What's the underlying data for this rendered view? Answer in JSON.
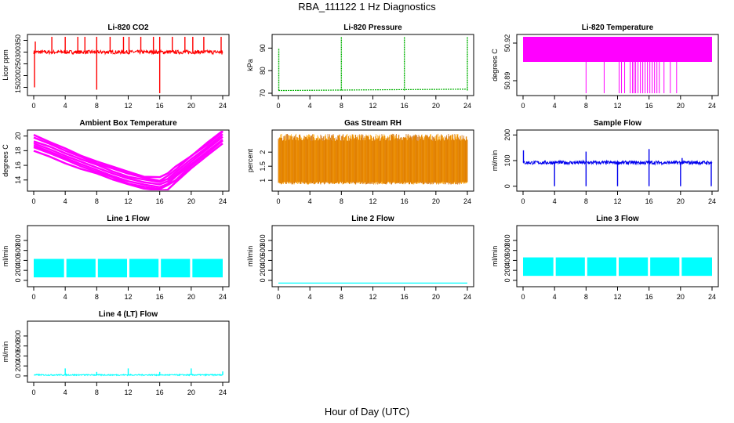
{
  "title": "RBA_111122  1 Hz Diagnostics",
  "xlabel": "Hour of Day (UTC)",
  "chart_data": [
    {
      "type": "line",
      "title": "Li-820 CO2",
      "ylabel": "Licor ppm",
      "color": "#ff0000",
      "xlim": [
        0,
        24
      ],
      "xticks": [
        0,
        4,
        8,
        12,
        16,
        20,
        24
      ],
      "ylim": [
        125,
        365
      ],
      "yticks": [
        150,
        200,
        250,
        300,
        350
      ],
      "series": [
        {
          "kind": "noisy",
          "base": 300,
          "noise": 8,
          "spikes_up": [
            [
              0.2,
              345
            ],
            [
              2.3,
              365
            ],
            [
              4.0,
              365
            ],
            [
              5.6,
              365
            ],
            [
              6.5,
              365
            ],
            [
              8.0,
              365
            ],
            [
              9.7,
              365
            ],
            [
              11.4,
              365
            ],
            [
              12.1,
              365
            ],
            [
              13.6,
              365
            ],
            [
              15.2,
              365
            ],
            [
              16.0,
              365
            ],
            [
              17.6,
              365
            ],
            [
              19.2,
              365
            ],
            [
              20.2,
              365
            ],
            [
              21.6,
              365
            ],
            [
              23.8,
              365
            ]
          ],
          "spikes_down": [
            [
              0.1,
              150
            ],
            [
              8.0,
              140
            ],
            [
              16.0,
              125
            ],
            [
              23.9,
              290
            ]
          ]
        }
      ]
    },
    {
      "type": "line",
      "title": "Li-820 Pressure",
      "ylabel": "kPa",
      "color": "#00b000",
      "xlim": [
        0,
        24
      ],
      "xticks": [
        0,
        4,
        8,
        12,
        16,
        20,
        24
      ],
      "ylim": [
        70,
        95
      ],
      "yticks": [
        70,
        80,
        90
      ],
      "series": [
        {
          "kind": "flat",
          "start": 71.2,
          "end": 71.8,
          "spikes_up": [
            [
              0.05,
              90
            ],
            [
              8.0,
              95
            ],
            [
              16.0,
              95
            ],
            [
              24.0,
              95
            ]
          ]
        }
      ]
    },
    {
      "type": "line",
      "title": "Li-820 Temperature",
      "ylabel": "degrees C",
      "color": "#ff00ff",
      "xlim": [
        0,
        24
      ],
      "xticks": [
        0,
        4,
        8,
        12,
        16,
        20,
        24
      ],
      "ylim": [
        50.88,
        50.925
      ],
      "yticks": [
        50.89,
        50.92
      ],
      "series": [
        {
          "kind": "band",
          "low": 50.905,
          "high": 50.925,
          "dips": [
            8.0,
            10.3,
            12.2,
            12.5,
            12.9,
            13.6,
            13.9,
            14.1,
            14.3,
            14.6,
            14.9,
            15.2,
            15.5,
            15.8,
            16.1,
            16.4,
            16.7,
            17.0,
            17.3,
            17.9,
            18.7,
            19.5
          ],
          "dip_to": 50.88
        }
      ]
    },
    {
      "type": "line",
      "title": "Ambient Box Temperature",
      "ylabel": "degrees C",
      "color": "#ff00ff",
      "xlim": [
        0,
        24
      ],
      "xticks": [
        0,
        4,
        8,
        12,
        16,
        20,
        24
      ],
      "ylim": [
        12.8,
        20.5
      ],
      "yticks": [
        14,
        16,
        18,
        20
      ],
      "series": [
        {
          "kind": "curve",
          "points": [
            [
              0,
              19.0
            ],
            [
              2,
              18.2
            ],
            [
              4,
              17.3
            ],
            [
              6,
              16.5
            ],
            [
              8,
              15.7
            ],
            [
              10,
              14.9
            ],
            [
              12,
              14.2
            ],
            [
              14,
              13.7
            ],
            [
              16,
              13.4
            ],
            [
              17,
              13.8
            ],
            [
              18,
              14.7
            ],
            [
              20,
              16.5
            ],
            [
              22,
              18.2
            ],
            [
              24,
              19.9
            ]
          ],
          "width": 1.2
        }
      ]
    },
    {
      "type": "line",
      "title": "Gas Stream RH",
      "ylabel": "percent",
      "color": "#ffa500",
      "overlay_color": "#cc6600",
      "xlim": [
        0,
        24
      ],
      "xticks": [
        0,
        4,
        8,
        12,
        16,
        20,
        24
      ],
      "ylim": [
        0.7,
        2.7
      ],
      "yticks": [
        1.0,
        1.5,
        2.0
      ],
      "series": [
        {
          "kind": "rh",
          "low": 0.95,
          "high": 2.4
        }
      ]
    },
    {
      "type": "line",
      "title": "Sample Flow",
      "ylabel": "ml/min",
      "color": "#0000ee",
      "xlim": [
        0,
        24
      ],
      "xticks": [
        0,
        4,
        8,
        12,
        16,
        20,
        24
      ],
      "ylim": [
        -10,
        210
      ],
      "yticks": [
        0,
        100,
        200
      ],
      "series": [
        {
          "kind": "noisy",
          "base": 92,
          "noise": 7,
          "spikes_up": [
            [
              0.05,
              140
            ],
            [
              8.0,
              135
            ],
            [
              16.0,
              145
            ],
            [
              20.2,
              110
            ]
          ],
          "spikes_down": [
            [
              4.0,
              0
            ],
            [
              8.0,
              0
            ],
            [
              12.0,
              0
            ],
            [
              16.0,
              0
            ],
            [
              20.0,
              0
            ],
            [
              23.9,
              0
            ]
          ]
        }
      ]
    },
    {
      "type": "line",
      "title": "Line 1 Flow",
      "ylabel": "ml/min",
      "color": "#00ffff",
      "xlim": [
        0,
        24
      ],
      "xticks": [
        0,
        4,
        8,
        12,
        16,
        20,
        24
      ],
      "ylim": [
        -80,
        1050
      ],
      "yticks": [
        0,
        200,
        400,
        600,
        800
      ],
      "series": [
        {
          "kind": "band",
          "low": 60,
          "high": 430,
          "gaps": [
            4.0,
            8.0,
            12.0,
            16.0,
            20.0
          ]
        }
      ]
    },
    {
      "type": "line",
      "title": "Line 2 Flow",
      "ylabel": "ml/min",
      "color": "#00ffff",
      "xlim": [
        0,
        24
      ],
      "xticks": [
        0,
        4,
        8,
        12,
        16,
        20,
        24
      ],
      "ylim": [
        -80,
        1050
      ],
      "yticks": [
        0,
        200,
        400,
        600,
        800
      ],
      "series": [
        {
          "kind": "flat",
          "start": -55,
          "end": -55,
          "spikes_up": []
        }
      ]
    },
    {
      "type": "line",
      "title": "Line 3 Flow",
      "ylabel": "ml/min",
      "color": "#00ffff",
      "xlim": [
        0,
        24
      ],
      "xticks": [
        0,
        4,
        8,
        12,
        16,
        20,
        24
      ],
      "ylim": [
        -80,
        1050
      ],
      "yticks": [
        0,
        200,
        400,
        600,
        800
      ],
      "series": [
        {
          "kind": "band",
          "low": 90,
          "high": 460,
          "gaps": [
            4.0,
            8.0,
            12.0,
            16.0,
            20.0
          ]
        }
      ]
    },
    {
      "type": "line",
      "title": "Line 4 (LT) Flow",
      "ylabel": "ml/min",
      "color": "#00ffff",
      "xlim": [
        0,
        24
      ],
      "xticks": [
        0,
        4,
        8,
        12,
        16,
        20,
        24
      ],
      "ylim": [
        -80,
        1050
      ],
      "yticks": [
        0,
        200,
        400,
        600,
        800
      ],
      "series": [
        {
          "kind": "noisy",
          "base": 20,
          "noise": 12,
          "spikes_up": [
            [
              4.0,
              150
            ],
            [
              8.0,
              80
            ],
            [
              12.0,
              150
            ],
            [
              16.0,
              80
            ],
            [
              20.0,
              150
            ],
            [
              24.0,
              90
            ]
          ],
          "spikes_down": []
        }
      ]
    }
  ]
}
